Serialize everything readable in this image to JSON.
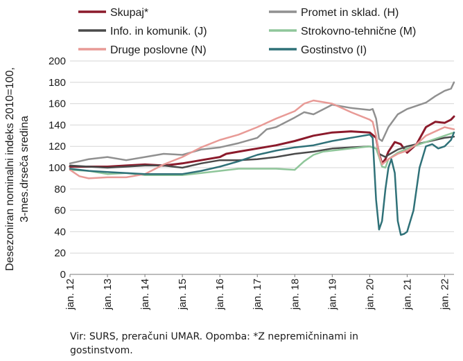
{
  "source_note": "Vir: SURS, preračuni UMAR. Opomba: *Z nepremičninami in gostinstvom.",
  "chart_data": {
    "type": "line",
    "title": "",
    "ylabel": "Desezoniran nominalni indeks 2010=100, 3-mes.drseča sredina",
    "ylabel_lines": [
      "Desezoniran nominalni indeks 2010=100,",
      "3-mes.drseča sredina"
    ],
    "xlabel": "",
    "ylim": [
      0,
      200
    ],
    "yticks": [
      0,
      20,
      40,
      60,
      80,
      100,
      120,
      140,
      160,
      180,
      200
    ],
    "x_range": [
      2012.0,
      2022.25
    ],
    "xtick_labels": [
      {
        "x": 2012,
        "label": "jan. 12"
      },
      {
        "x": 2013,
        "label": "jan. 13"
      },
      {
        "x": 2014,
        "label": "jan. 14"
      },
      {
        "x": 2015,
        "label": "jan. 15"
      },
      {
        "x": 2016,
        "label": "jan. 16"
      },
      {
        "x": 2017,
        "label": "jan. 17"
      },
      {
        "x": 2018,
        "label": "jan. 18"
      },
      {
        "x": 2019,
        "label": "jan. 19"
      },
      {
        "x": 2020,
        "label": "jan. 20"
      },
      {
        "x": 2021,
        "label": "jan. 21"
      },
      {
        "x": 2022,
        "label": "jan. 22"
      }
    ],
    "grid": "horizontal",
    "legend_position": "top",
    "series": [
      {
        "name": "Skupaj*",
        "color": "#8b1a2b",
        "width": 3,
        "x": [
          2012.0,
          2012.5,
          2013.0,
          2013.5,
          2014.0,
          2014.5,
          2015.0,
          2015.5,
          2016.0,
          2016.17,
          2016.5,
          2017.0,
          2017.5,
          2018.0,
          2018.5,
          2019.0,
          2019.5,
          2020.0,
          2020.17,
          2020.25,
          2020.33,
          2020.42,
          2020.5,
          2020.67,
          2020.83,
          2021.0,
          2021.25,
          2021.5,
          2021.75,
          2022.0,
          2022.17,
          2022.25
        ],
        "y": [
          101,
          101,
          101,
          102,
          103,
          102,
          104,
          107,
          110,
          113,
          115,
          118,
          121,
          125,
          130,
          133,
          134,
          133,
          128,
          113,
          104,
          108,
          115,
          124,
          122,
          114,
          122,
          138,
          143,
          142,
          145,
          148
        ]
      },
      {
        "name": "Promet in sklad. (H)",
        "color": "#909090",
        "width": 2.5,
        "x": [
          2012.0,
          2012.25,
          2012.5,
          2013.0,
          2013.5,
          2014.0,
          2014.5,
          2015.0,
          2015.5,
          2016.0,
          2016.5,
          2017.0,
          2017.25,
          2017.5,
          2018.0,
          2018.25,
          2018.5,
          2019.0,
          2019.5,
          2020.0,
          2020.08,
          2020.17,
          2020.25,
          2020.33,
          2020.5,
          2020.75,
          2021.0,
          2021.25,
          2021.5,
          2021.75,
          2022.0,
          2022.17,
          2022.25
        ],
        "y": [
          104,
          106,
          108,
          110,
          107,
          110,
          113,
          112,
          117,
          119,
          123,
          128,
          136,
          138,
          147,
          152,
          150,
          159,
          156,
          154,
          155,
          146,
          127,
          125,
          138,
          150,
          155,
          158,
          161,
          167,
          172,
          174,
          180
        ]
      },
      {
        "name": "Info. in komunik. (J)",
        "color": "#4a4a4a",
        "width": 2.5,
        "x": [
          2012.0,
          2012.5,
          2013.0,
          2013.5,
          2014.0,
          2014.5,
          2015.0,
          2015.5,
          2016.0,
          2016.5,
          2017.0,
          2017.5,
          2018.0,
          2018.5,
          2019.0,
          2019.5,
          2020.0,
          2020.17,
          2020.25,
          2020.42,
          2020.5,
          2020.75,
          2021.0,
          2021.5,
          2022.0,
          2022.25
        ],
        "y": [
          102,
          101,
          100,
          101,
          102,
          102,
          100,
          104,
          107,
          107,
          108,
          110,
          113,
          115,
          118,
          119,
          120,
          118,
          113,
          110,
          112,
          117,
          120,
          124,
          128,
          129
        ]
      },
      {
        "name": "Strokovno-tehnične (M)",
        "color": "#8fc69a",
        "width": 2.5,
        "x": [
          2012.0,
          2012.5,
          2013.0,
          2013.5,
          2014.0,
          2014.5,
          2015.0,
          2015.5,
          2016.0,
          2016.5,
          2017.0,
          2017.5,
          2018.0,
          2018.25,
          2018.5,
          2018.75,
          2019.0,
          2019.5,
          2020.0,
          2020.17,
          2020.25,
          2020.33,
          2020.42,
          2020.5,
          2020.75,
          2021.0,
          2021.5,
          2022.0,
          2022.25
        ],
        "y": [
          98,
          97,
          94,
          95,
          93,
          93,
          93,
          95,
          97,
          99,
          99,
          99,
          98,
          106,
          112,
          115,
          116,
          118,
          120,
          118,
          110,
          101,
          100,
          108,
          114,
          118,
          124,
          130,
          133
        ]
      },
      {
        "name": "Druge poslovne (N)",
        "color": "#e89a96",
        "width": 2.5,
        "x": [
          2012.0,
          2012.25,
          2012.5,
          2013.0,
          2013.5,
          2014.0,
          2014.5,
          2015.0,
          2015.5,
          2016.0,
          2016.5,
          2017.0,
          2017.5,
          2018.0,
          2018.25,
          2018.5,
          2019.0,
          2019.5,
          2020.0,
          2020.08,
          2020.17,
          2020.25,
          2020.33,
          2020.5,
          2020.75,
          2021.0,
          2021.25,
          2021.5,
          2022.0,
          2022.25
        ],
        "y": [
          98,
          92,
          90,
          91,
          91,
          94,
          103,
          110,
          119,
          126,
          131,
          138,
          146,
          153,
          160,
          163,
          160,
          152,
          145,
          143,
          130,
          112,
          103,
          108,
          113,
          116,
          122,
          130,
          138,
          136
        ]
      },
      {
        "name": "Gostinstvo (I)",
        "color": "#2f7178",
        "width": 2.5,
        "x": [
          2012.0,
          2012.5,
          2013.0,
          2013.5,
          2014.0,
          2014.5,
          2015.0,
          2015.5,
          2016.0,
          2016.5,
          2017.0,
          2017.5,
          2018.0,
          2018.5,
          2019.0,
          2019.5,
          2020.0,
          2020.08,
          2020.17,
          2020.25,
          2020.33,
          2020.42,
          2020.5,
          2020.58,
          2020.67,
          2020.75,
          2020.83,
          2020.92,
          2021.0,
          2021.17,
          2021.33,
          2021.5,
          2021.67,
          2021.83,
          2022.0,
          2022.17,
          2022.25
        ],
        "y": [
          99,
          97,
          96,
          95,
          94,
          94,
          94,
          97,
          101,
          106,
          112,
          116,
          119,
          121,
          125,
          128,
          131,
          128,
          70,
          42,
          50,
          80,
          100,
          108,
          95,
          50,
          37,
          38,
          40,
          60,
          100,
          120,
          122,
          118,
          120,
          126,
          133
        ]
      }
    ]
  }
}
